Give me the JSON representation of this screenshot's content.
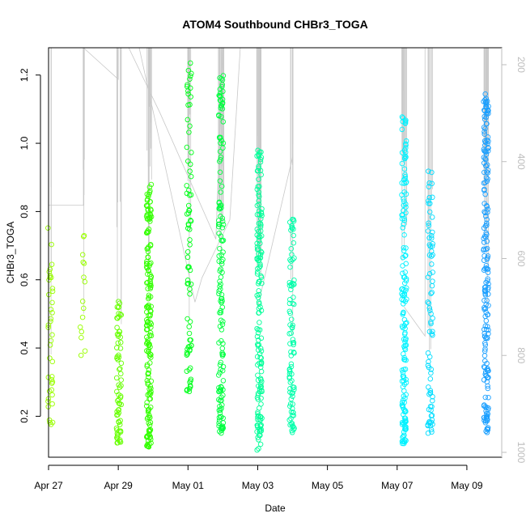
{
  "chart_data": {
    "type": "scatter",
    "title": "ATOM4 Southbound CHBr3_TOGA",
    "xlabel": "Date",
    "ylabel": "CHBr3_TOGA",
    "x_is_date": true,
    "xlim": [
      0,
      13
    ],
    "ylim": [
      0.08,
      1.28
    ],
    "xticks": [
      {
        "value": 0,
        "label": "Apr 27"
      },
      {
        "value": 2,
        "label": "Apr 29"
      },
      {
        "value": 4,
        "label": "May 01"
      },
      {
        "value": 6,
        "label": "May 03"
      },
      {
        "value": 8,
        "label": "May 05"
      },
      {
        "value": 10,
        "label": "May 07"
      },
      {
        "value": 12,
        "label": "May 09"
      }
    ],
    "yticks": [
      0.2,
      0.4,
      0.6,
      0.8,
      1.0,
      1.2
    ],
    "ytick_labels": [
      "0.2",
      "0.4",
      "0.6",
      "0.8",
      "1.0",
      "1.2"
    ],
    "secondary_axis": {
      "side": "right",
      "label": "",
      "reversed": true,
      "range": [
        1010,
        165
      ],
      "ticks": [
        200,
        400,
        600,
        800,
        1000
      ],
      "tick_labels": [
        "200",
        "400",
        "600",
        "800",
        "1000"
      ],
      "color": "#bdbdbd"
    },
    "marker": "open-circle",
    "color_scale": [
      "#7fff00",
      "#00ff00",
      "#00ff80",
      "#00ffff",
      "#0080ff"
    ],
    "clusters": [
      {
        "x": 0.05,
        "ymin": 0.17,
        "ymax": 0.77,
        "n": 40,
        "color": "#99ff00"
      },
      {
        "x": 0.98,
        "ymin": 0.37,
        "ymax": 0.74,
        "n": 15,
        "color": "#99ff00"
      },
      {
        "x": 2.02,
        "ymin": 0.12,
        "ymax": 0.54,
        "n": 70,
        "color": "#66ff00"
      },
      {
        "x": 2.88,
        "ymin": 0.11,
        "ymax": 0.89,
        "n": 180,
        "color": "#33ff00"
      },
      {
        "x": 4.03,
        "ymin": 0.27,
        "ymax": 1.24,
        "n": 80,
        "color": "#00ff1a"
      },
      {
        "x": 4.95,
        "ymin": 0.15,
        "ymax": 1.24,
        "n": 150,
        "color": "#00ff40"
      },
      {
        "x": 6.05,
        "ymin": 0.1,
        "ymax": 0.98,
        "n": 160,
        "color": "#00ff99"
      },
      {
        "x": 6.98,
        "ymin": 0.15,
        "ymax": 0.8,
        "n": 90,
        "color": "#00ffaa"
      },
      {
        "x": 10.2,
        "ymin": 0.12,
        "ymax": 1.09,
        "n": 160,
        "color": "#00f2ff"
      },
      {
        "x": 10.95,
        "ymin": 0.15,
        "ymax": 0.93,
        "n": 80,
        "color": "#00ddff"
      },
      {
        "x": 12.55,
        "ymin": 0.15,
        "ymax": 1.15,
        "n": 190,
        "color": "#1a9fff"
      }
    ],
    "altitude_trace": {
      "color": "#c8c8c8",
      "description": "flight altitude (right axis, hPa) drawn as light grey line"
    }
  }
}
